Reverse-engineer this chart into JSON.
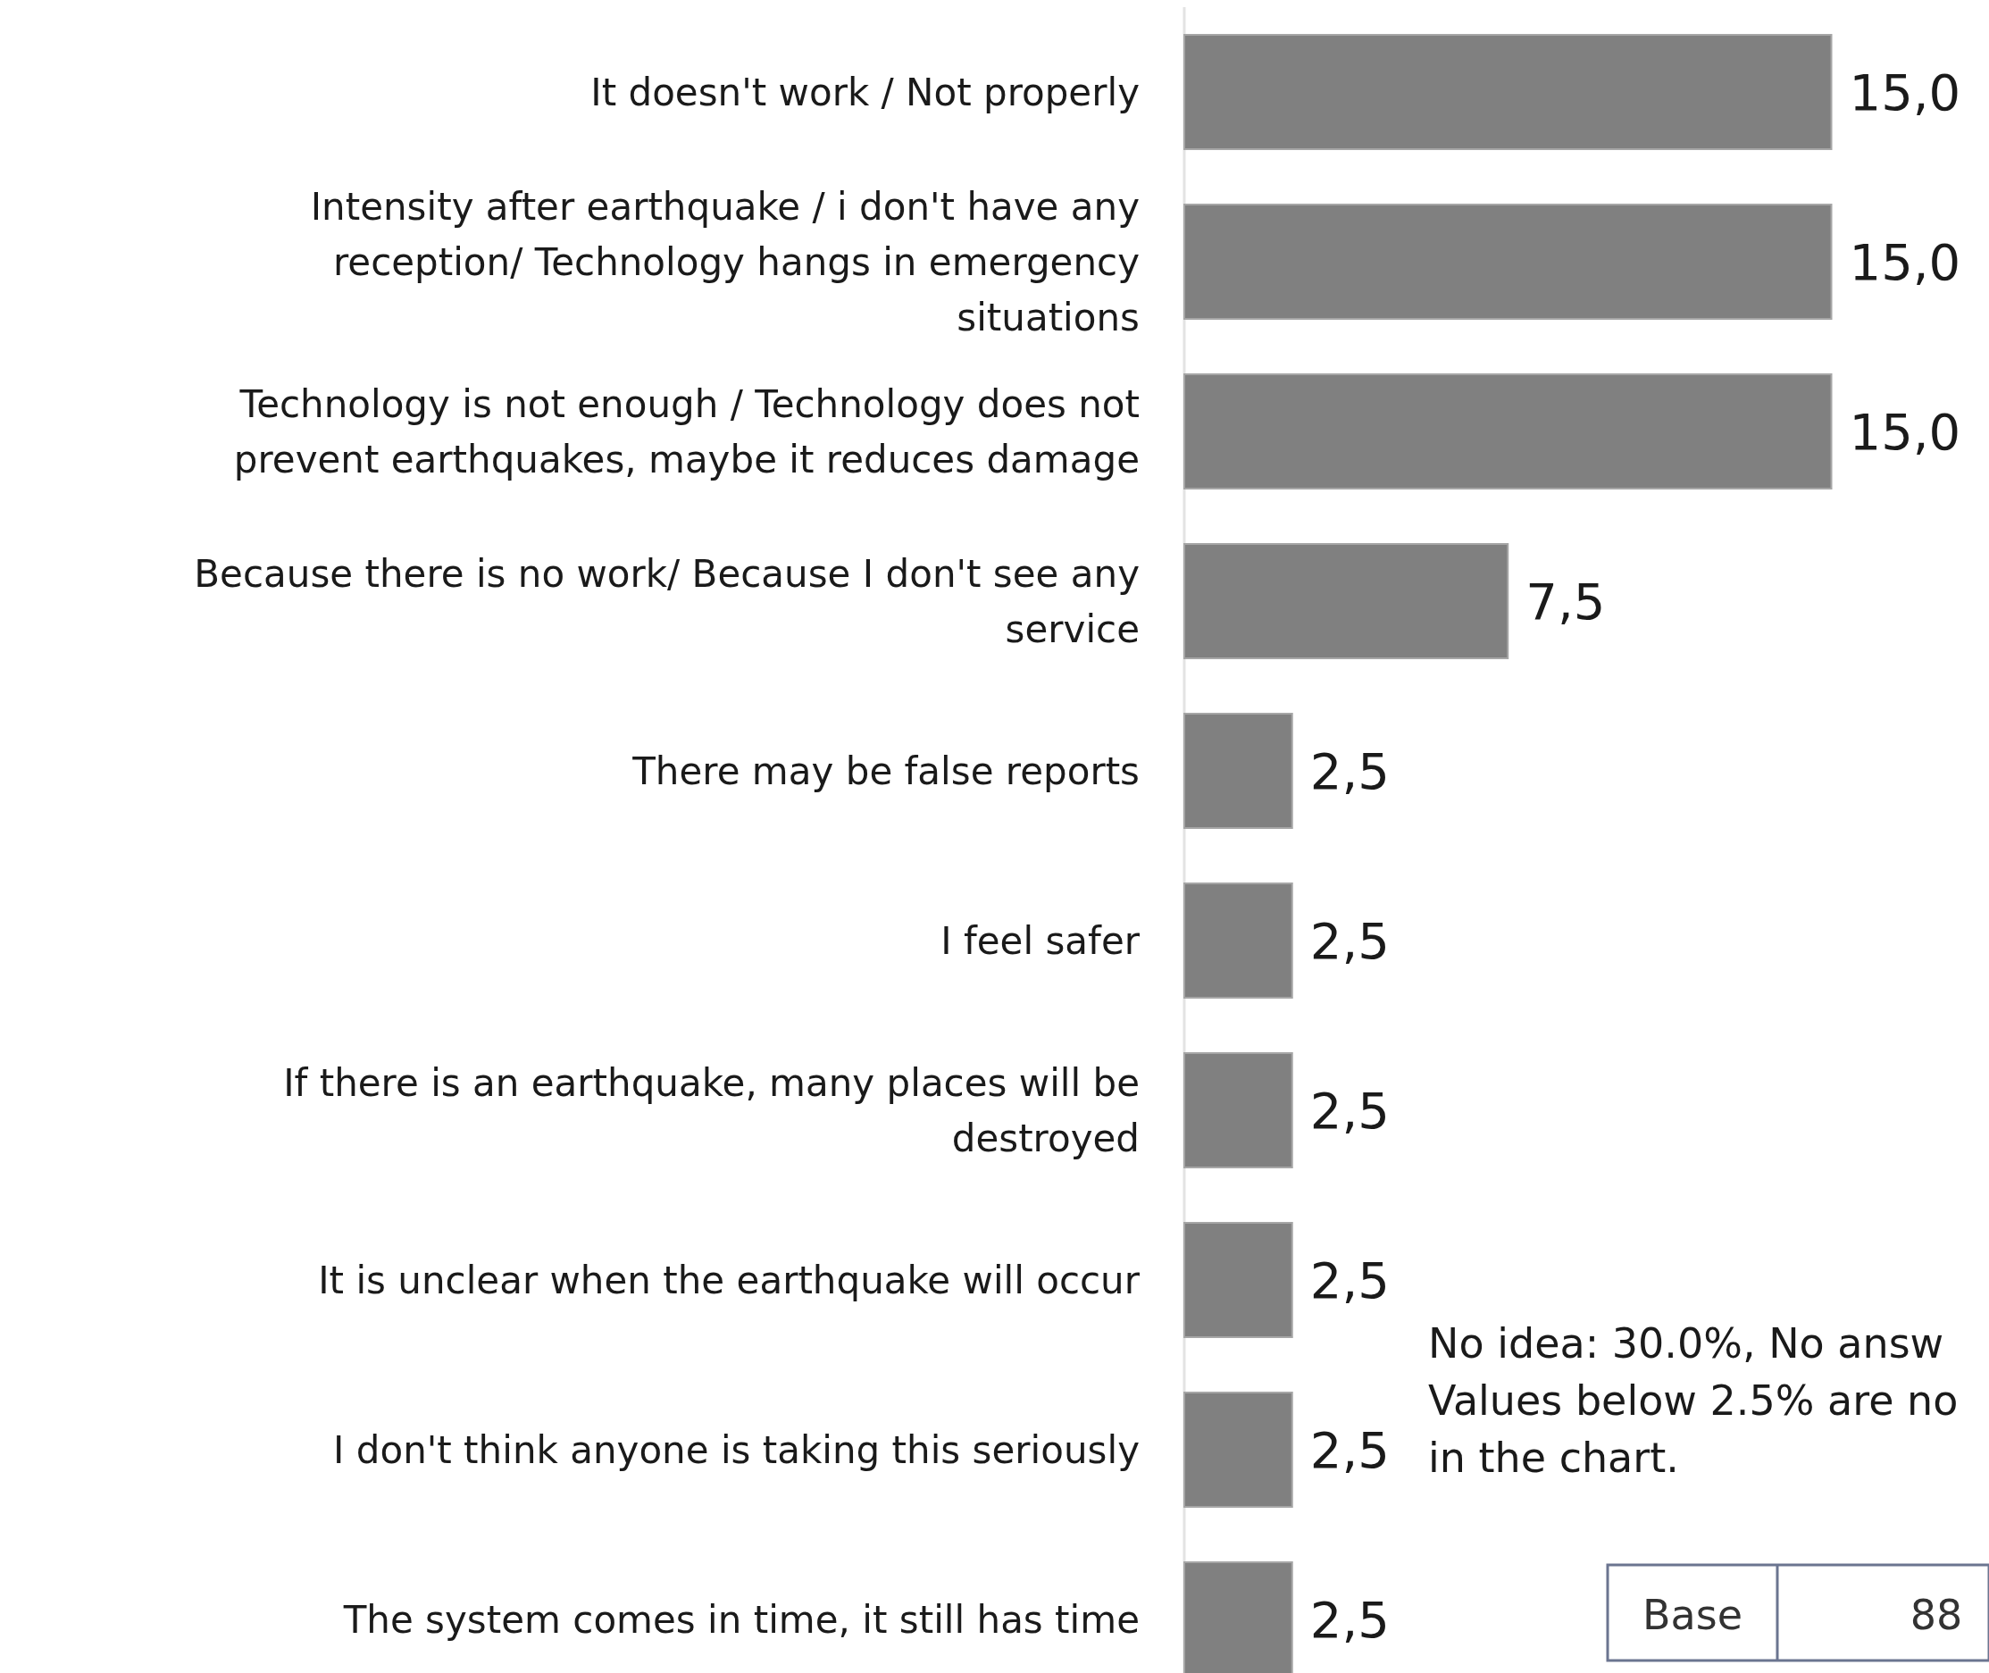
{
  "chart_data": {
    "type": "bar",
    "orientation": "horizontal",
    "categories": [
      "It doesn't work / Not properly",
      "Intensity after earthquake / i don't have any reception/ Technology hangs in emergency situations",
      "Technology is not enough / Technology does not prevent earthquakes, maybe it reduces damage",
      "Because there is no work/ Because I don't see any service",
      "There may be false reports",
      "I feel safer",
      "If there is an earthquake, many places will be destroyed",
      "It is unclear when the earthquake will occur",
      "I don't think anyone is taking this seriously",
      "The system comes in time, it still has time"
    ],
    "values": [
      15.0,
      15.0,
      15.0,
      7.5,
      2.5,
      2.5,
      2.5,
      2.5,
      2.5,
      2.5
    ],
    "value_labels": [
      "15,0",
      "15,0",
      "15,0",
      "7,5",
      "2,5",
      "2,5",
      "2,5",
      "2,5",
      "2,5",
      "2,5"
    ],
    "color": "#808080",
    "annotations": [
      "No idea: 30.0%, No answ",
      "Values below 2.5% are no",
      "in the chart.",
      "Base",
      "88"
    ]
  }
}
